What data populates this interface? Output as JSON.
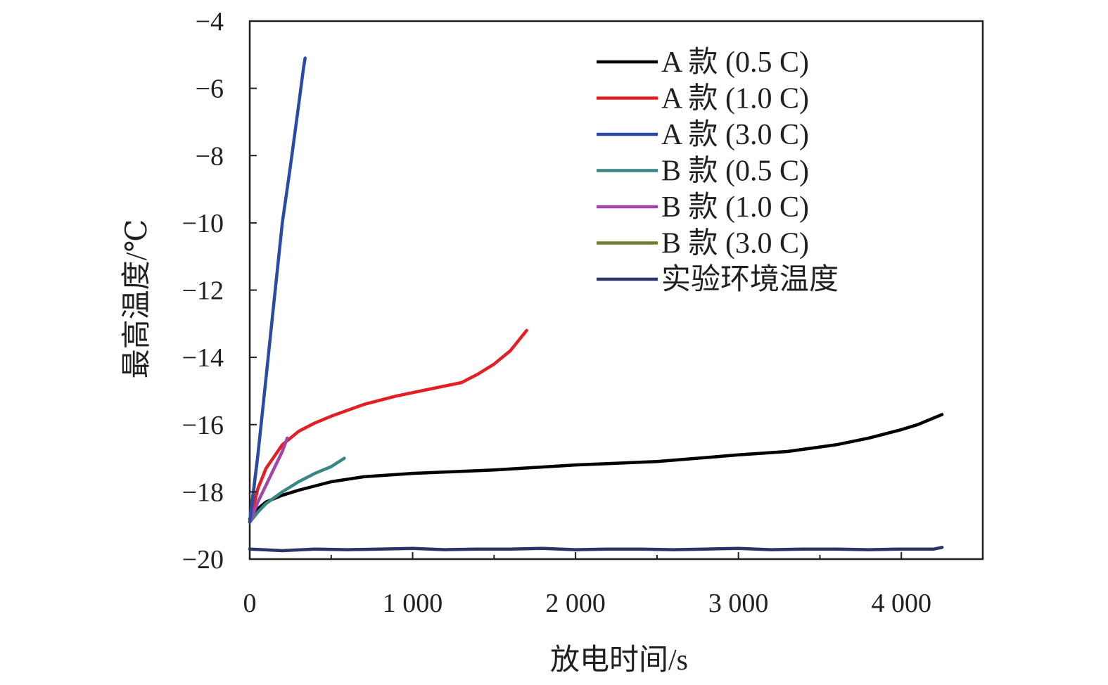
{
  "chart_data": {
    "type": "line",
    "title": "",
    "xlabel": "放电时间/s",
    "ylabel": "最高温度/℃",
    "xlim": [
      0,
      4500
    ],
    "ylim": [
      -20,
      -4
    ],
    "grid": false,
    "legend_position": "top-right",
    "xticks": [
      0,
      1000,
      2000,
      3000,
      4000
    ],
    "xtick_labels": [
      "0",
      "1 000",
      "2 000",
      "3 000",
      "4 000"
    ],
    "yticks": [
      -20,
      -18,
      -16,
      -14,
      -12,
      -10,
      -8,
      -6,
      -4
    ],
    "ytick_labels": [
      "−20",
      "−18",
      "−16",
      "−14",
      "−12",
      "−10",
      "−8",
      "−6",
      "−4"
    ],
    "series": [
      {
        "name": "A 款 (0.5  C)",
        "color": "#000000",
        "x": [
          0,
          50,
          100,
          200,
          300,
          500,
          700,
          1000,
          1500,
          2000,
          2500,
          3000,
          3300,
          3600,
          3800,
          4000,
          4100,
          4200,
          4250
        ],
        "y": [
          -18.8,
          -18.5,
          -18.3,
          -18.1,
          -17.95,
          -17.7,
          -17.55,
          -17.45,
          -17.35,
          -17.2,
          -17.1,
          -16.9,
          -16.8,
          -16.6,
          -16.4,
          -16.15,
          -16.0,
          -15.8,
          -15.7
        ]
      },
      {
        "name": "A 款 (1.0 C)",
        "color": "#e31e24",
        "x": [
          0,
          50,
          100,
          200,
          300,
          400,
          500,
          700,
          900,
          1100,
          1300,
          1400,
          1500,
          1600,
          1700
        ],
        "y": [
          -18.9,
          -17.9,
          -17.3,
          -16.6,
          -16.2,
          -15.95,
          -15.75,
          -15.4,
          -15.15,
          -14.95,
          -14.75,
          -14.5,
          -14.2,
          -13.8,
          -13.2
        ]
      },
      {
        "name": "A 款 (3.0 C)",
        "color": "#2b4aa6",
        "x": [
          0,
          50,
          100,
          150,
          200,
          250,
          300,
          330,
          340
        ],
        "y": [
          -18.9,
          -16.9,
          -14.6,
          -12.3,
          -10.0,
          -8.3,
          -6.5,
          -5.4,
          -5.1
        ]
      },
      {
        "name": "B 款 (0.5 C)",
        "color": "#3a8682",
        "x": [
          0,
          50,
          100,
          200,
          300,
          400,
          500,
          580
        ],
        "y": [
          -18.9,
          -18.6,
          -18.35,
          -18.0,
          -17.7,
          -17.45,
          -17.25,
          -17.0
        ]
      },
      {
        "name": "B 款 (1.0 C)",
        "color": "#a046a8",
        "x": [
          0,
          50,
          100,
          150,
          200,
          230
        ],
        "y": [
          -18.9,
          -18.3,
          -17.8,
          -17.3,
          -16.8,
          -16.4
        ]
      },
      {
        "name": "B 款 (3.0 C)",
        "color": "#6e7b33",
        "x": [
          0,
          15,
          30,
          45
        ],
        "y": [
          -18.9,
          -18.3,
          -17.7,
          -17.1
        ]
      },
      {
        "name": "实验环境温度",
        "color": "#2a3466",
        "x": [
          0,
          200,
          400,
          600,
          800,
          1000,
          1200,
          1400,
          1600,
          1800,
          2000,
          2200,
          2400,
          2600,
          2800,
          3000,
          3200,
          3400,
          3600,
          3800,
          4000,
          4200,
          4250
        ],
        "y": [
          -19.7,
          -19.75,
          -19.7,
          -19.72,
          -19.7,
          -19.68,
          -19.72,
          -19.7,
          -19.7,
          -19.68,
          -19.72,
          -19.7,
          -19.7,
          -19.72,
          -19.7,
          -19.68,
          -19.72,
          -19.7,
          -19.7,
          -19.72,
          -19.7,
          -19.7,
          -19.65
        ]
      }
    ]
  }
}
